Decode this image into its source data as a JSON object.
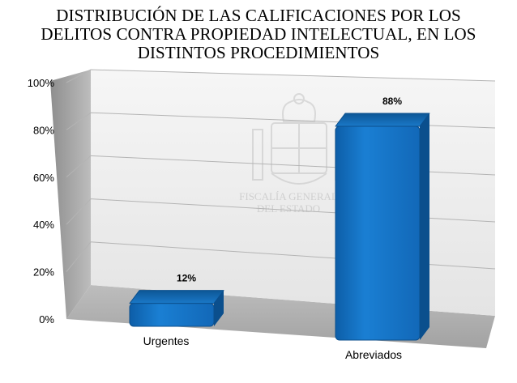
{
  "chart_data": {
    "type": "bar",
    "title_lines": [
      "DISTRIBUCIÓN DE LAS CALIFICACIONES POR LOS",
      "DELITOS CONTRA PROPIEDAD INTELECTUAL, EN LOS",
      "DISTINTOS PROCEDIMIENTOS"
    ],
    "categories": [
      "Urgentes",
      "Abreviados"
    ],
    "values": [
      12,
      88
    ],
    "data_labels": [
      "12%",
      "88%"
    ],
    "y_ticks": [
      "0%",
      "20%",
      "40%",
      "60%",
      "80%",
      "100%"
    ],
    "ylim": [
      0,
      100
    ],
    "grid": true,
    "legend": "none",
    "bar_color": "#1573c7",
    "watermark_text": [
      "FISCALÍA GENERAL",
      "DEL ESTADO"
    ]
  }
}
